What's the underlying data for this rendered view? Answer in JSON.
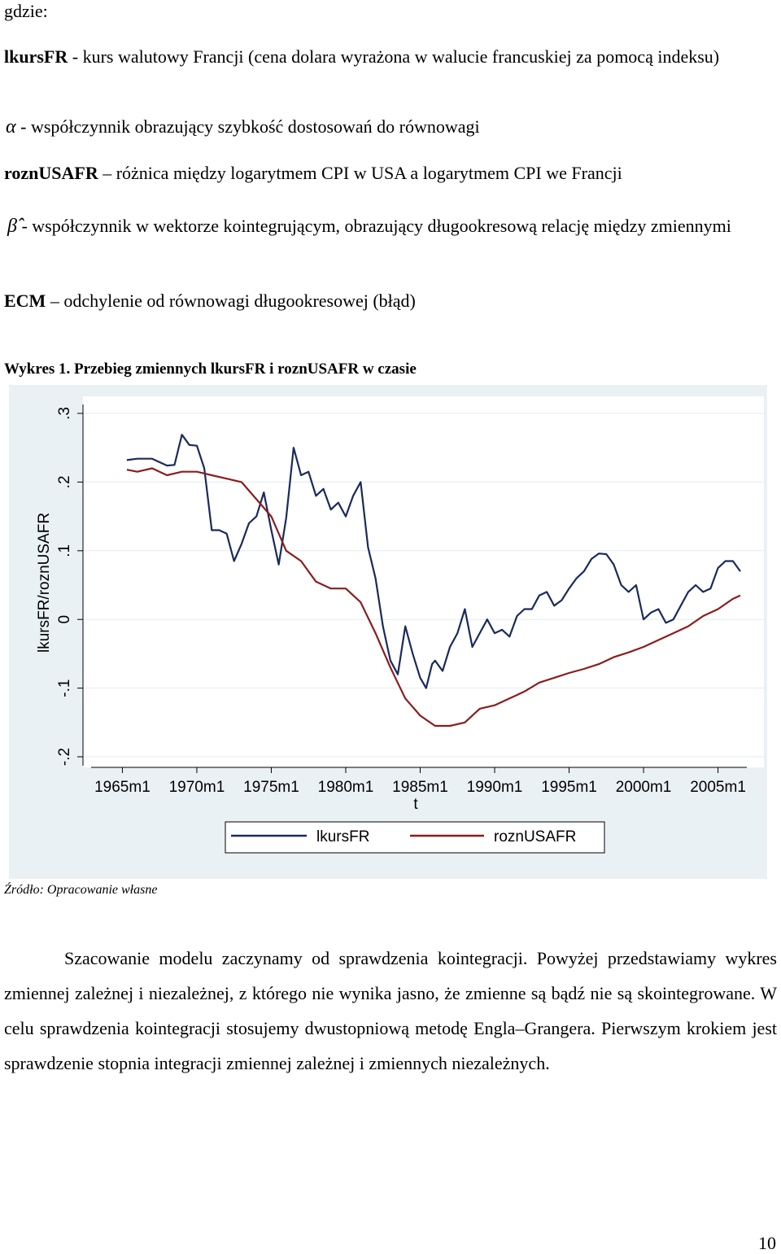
{
  "intro": "gdzie:",
  "definitions": [
    {
      "symbol": "lkursFR",
      "dash": " - ",
      "text": "kurs walutowy Francji (cena dolara wyrażona w walucie francuskiej za pomocą indeksu)"
    },
    {
      "symbol": "α",
      "dash": " - ",
      "text": "współczynnik obrazujący szybkość dostosowań do równowagi"
    },
    {
      "symbol": "roznUSAFR",
      "dash": " – ",
      "text": "różnica między logarytmem CPI w USA a logarytmem CPI we Francji"
    },
    {
      "symbol": "β̂",
      "dash": " - ",
      "text": "współczynnik w wektorze kointegrującym, obrazujący długookresową relację między zmiennymi"
    },
    {
      "symbol": "ECM",
      "dash": " – ",
      "text": "odchylenie od równowagi długookresowej (błąd)"
    }
  ],
  "figure_caption": "Wykres 1. Przebieg zmiennych lkursFR i roznUSAFR w czasie",
  "chart_data": {
    "type": "line",
    "title": "",
    "xlabel": "t",
    "ylabel": "lkursFR/roznUSAFR",
    "xlim": [
      1962.9,
      2007.1
    ],
    "ylim": [
      -0.2,
      0.3
    ],
    "x_ticks": [
      "1965m1",
      "1970m1",
      "1975m1",
      "1980m1",
      "1985m1",
      "1990m1",
      "1995m1",
      "2000m1",
      "2005m1"
    ],
    "y_ticks": [
      "-.2",
      "-.1",
      "0",
      ".1",
      ".2",
      ".3"
    ],
    "grid": true,
    "legend_position": "bottom",
    "series": [
      {
        "name": "lkursFR",
        "color": "#1a2a5a",
        "x": [
          1965.3,
          1966,
          1967,
          1968,
          1968.5,
          1969,
          1969.5,
          1970,
          1970.5,
          1971,
          1971.5,
          1972,
          1972.5,
          1973,
          1973.5,
          1974,
          1974.5,
          1975,
          1975.5,
          1976,
          1976.5,
          1977,
          1977.5,
          1978,
          1978.5,
          1979,
          1979.5,
          1980,
          1980.5,
          1981,
          1981.5,
          1982,
          1982.5,
          1983,
          1983.5,
          1984,
          1984.5,
          1985,
          1985.4,
          1985.8,
          1986,
          1986.5,
          1987,
          1987.5,
          1988,
          1988.5,
          1989,
          1989.5,
          1990,
          1990.5,
          1991,
          1991.5,
          1992,
          1992.5,
          1993,
          1993.5,
          1994,
          1994.5,
          1995,
          1995.5,
          1996,
          1996.5,
          1997,
          1997.5,
          1998,
          1998.5,
          1999,
          1999.5,
          2000,
          2000.5,
          2001,
          2001.5,
          2002,
          2002.5,
          2003,
          2003.5,
          2004,
          2004.5,
          2005,
          2005.5,
          2006,
          2006.5
        ],
        "y": [
          0.232,
          0.234,
          0.234,
          0.224,
          0.225,
          0.269,
          0.254,
          0.253,
          0.22,
          0.13,
          0.13,
          0.125,
          0.085,
          0.11,
          0.14,
          0.15,
          0.185,
          0.13,
          0.08,
          0.148,
          0.25,
          0.21,
          0.215,
          0.18,
          0.19,
          0.16,
          0.17,
          0.15,
          0.18,
          0.2,
          0.105,
          0.06,
          -0.01,
          -0.06,
          -0.08,
          -0.01,
          -0.05,
          -0.085,
          -0.1,
          -0.065,
          -0.06,
          -0.075,
          -0.04,
          -0.02,
          0.015,
          -0.04,
          -0.02,
          0.0,
          -0.02,
          -0.015,
          -0.025,
          0.005,
          0.015,
          0.015,
          0.035,
          0.04,
          0.02,
          0.028,
          0.045,
          0.06,
          0.07,
          0.088,
          0.096,
          0.095,
          0.08,
          0.05,
          0.04,
          0.05,
          0.0,
          0.01,
          0.015,
          -0.005,
          0.0,
          0.02,
          0.04,
          0.05,
          0.04,
          0.045,
          0.075,
          0.085,
          0.085,
          0.07
        ]
      },
      {
        "name": "roznUSAFR",
        "color": "#8b1d1d",
        "x": [
          1965.3,
          1966,
          1967,
          1968,
          1969,
          1970,
          1971,
          1972,
          1973,
          1974,
          1975,
          1976,
          1977,
          1978,
          1979,
          1980,
          1981,
          1982,
          1983,
          1984,
          1985,
          1986,
          1987,
          1988,
          1989,
          1990,
          1991,
          1992,
          1993,
          1994,
          1995,
          1996,
          1997,
          1998,
          1999,
          2000,
          2001,
          2002,
          2003,
          2004,
          2005,
          2006,
          2006.5
        ],
        "y": [
          0.218,
          0.215,
          0.22,
          0.21,
          0.215,
          0.215,
          0.21,
          0.205,
          0.2,
          0.175,
          0.15,
          0.1,
          0.085,
          0.055,
          0.045,
          0.045,
          0.025,
          -0.02,
          -0.07,
          -0.115,
          -0.14,
          -0.155,
          -0.155,
          -0.15,
          -0.13,
          -0.125,
          -0.115,
          -0.105,
          -0.092,
          -0.085,
          -0.078,
          -0.072,
          -0.065,
          -0.055,
          -0.048,
          -0.04,
          -0.03,
          -0.02,
          -0.01,
          0.005,
          0.015,
          0.03,
          0.035
        ]
      }
    ]
  },
  "source_note": "Źródło: Opracowanie własne",
  "paragraph": "Szacowanie modelu zaczynamy od sprawdzenia kointegracji. Powyżej przedstawiamy wykres zmiennej zależnej i niezależnej, z którego nie wynika jasno, że zmienne są bądź nie są skointegrowane. W celu sprawdzenia kointegracji stosujemy dwustopniową metodę Engla–Grangera. Pierwszym krokiem jest sprawdzenie stopnia integracji zmiennej zależnej i zmiennych niezależnych.",
  "page_number": "10"
}
